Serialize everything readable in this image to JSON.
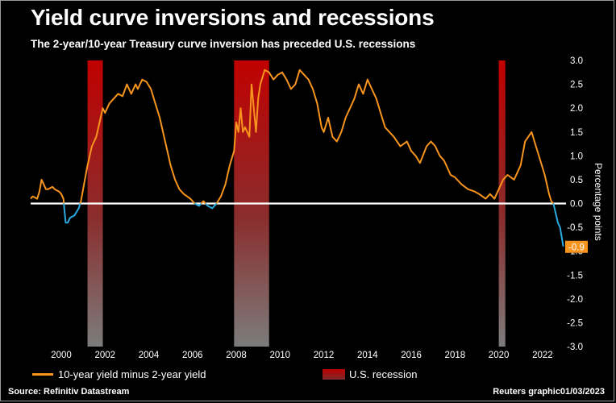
{
  "title": "Yield curve inversions and recessions",
  "subtitle": "The 2-year/10-year Treasury curve inversion has preceded U.S. recessions",
  "legend": {
    "series_label": "10-year yield minus 2-year yield",
    "recession_label": "U.S. recession"
  },
  "source": "Source: Refinitiv Datastream",
  "credit": "Reuters graphic01/03/2023",
  "chart_data": {
    "type": "line",
    "title": "Yield curve inversions and recessions",
    "ylabel": "Percentage points",
    "xlim": [
      1998.6,
      2023.0
    ],
    "ylim": [
      -3.0,
      3.0
    ],
    "x_ticks": [
      2000,
      2002,
      2004,
      2006,
      2008,
      2010,
      2012,
      2014,
      2016,
      2018,
      2020,
      2022
    ],
    "y_ticks": [
      3.0,
      2.5,
      2.0,
      1.5,
      1.0,
      0.5,
      0.0,
      -0.5,
      -1.0,
      -1.5,
      -2.0,
      -2.5,
      -3.0
    ],
    "recessions": [
      {
        "start": 2001.2,
        "end": 2001.9
      },
      {
        "start": 2007.9,
        "end": 2009.5
      },
      {
        "start": 2020.0,
        "end": 2020.3
      }
    ],
    "last_value_label": "-0.9",
    "colors": {
      "positive": "#f7941d",
      "negative": "#29abe2",
      "zero_line": "#ffffff",
      "recession_top": "#c00000",
      "recession_bottom": "#8c8c8c",
      "label_bg": "#f7941d"
    },
    "series": [
      {
        "name": "10-year yield minus 2-year yield",
        "x": [
          1998.6,
          1998.7,
          1998.9,
          1999.0,
          1999.1,
          1999.3,
          1999.4,
          1999.6,
          1999.7,
          1999.9,
          2000.0,
          2000.1,
          2000.2,
          2000.3,
          2000.4,
          2000.6,
          2000.8,
          2000.9,
          2001.0,
          2001.2,
          2001.4,
          2001.6,
          2001.8,
          2001.9,
          2002.0,
          2002.2,
          2002.4,
          2002.6,
          2002.8,
          2003.0,
          2003.2,
          2003.4,
          2003.5,
          2003.7,
          2003.9,
          2004.1,
          2004.3,
          2004.5,
          2004.8,
          2005.0,
          2005.2,
          2005.4,
          2005.6,
          2005.9,
          2006.1,
          2006.3,
          2006.5,
          2006.7,
          2006.9,
          2007.1,
          2007.3,
          2007.5,
          2007.7,
          2007.9,
          2008.0,
          2008.1,
          2008.2,
          2008.3,
          2008.4,
          2008.6,
          2008.7,
          2008.9,
          2009.0,
          2009.1,
          2009.3,
          2009.5,
          2009.7,
          2009.9,
          2010.1,
          2010.3,
          2010.5,
          2010.7,
          2010.9,
          2011.1,
          2011.3,
          2011.5,
          2011.7,
          2011.9,
          2012.0,
          2012.2,
          2012.4,
          2012.6,
          2012.8,
          2013.0,
          2013.2,
          2013.4,
          2013.6,
          2013.8,
          2014.0,
          2014.2,
          2014.4,
          2014.6,
          2014.8,
          2015.0,
          2015.2,
          2015.5,
          2015.8,
          2016.0,
          2016.2,
          2016.4,
          2016.7,
          2016.9,
          2017.1,
          2017.3,
          2017.5,
          2017.8,
          2018.0,
          2018.3,
          2018.6,
          2018.9,
          2019.1,
          2019.4,
          2019.6,
          2019.8,
          2020.0,
          2020.2,
          2020.4,
          2020.7,
          2021.0,
          2021.2,
          2021.5,
          2021.7,
          2021.9,
          2022.1,
          2022.3,
          2022.4,
          2022.5,
          2022.6,
          2022.7,
          2022.8,
          2022.95
        ],
        "y": [
          0.1,
          0.15,
          0.1,
          0.25,
          0.5,
          0.3,
          0.3,
          0.35,
          0.3,
          0.25,
          0.2,
          0.1,
          -0.4,
          -0.4,
          -0.3,
          -0.25,
          -0.1,
          0.05,
          0.3,
          0.8,
          1.2,
          1.4,
          1.8,
          2.0,
          1.9,
          2.1,
          2.2,
          2.3,
          2.25,
          2.5,
          2.3,
          2.5,
          2.4,
          2.6,
          2.55,
          2.4,
          2.1,
          1.8,
          1.2,
          0.8,
          0.5,
          0.3,
          0.2,
          0.1,
          0.0,
          -0.05,
          0.05,
          -0.05,
          -0.1,
          0.0,
          0.15,
          0.4,
          0.8,
          1.1,
          1.7,
          1.5,
          2.0,
          1.5,
          1.6,
          1.4,
          2.5,
          1.5,
          2.2,
          2.5,
          2.8,
          2.75,
          2.6,
          2.7,
          2.75,
          2.6,
          2.4,
          2.5,
          2.8,
          2.7,
          2.6,
          2.4,
          2.1,
          1.6,
          1.5,
          1.8,
          1.4,
          1.3,
          1.5,
          1.8,
          2.0,
          2.2,
          2.5,
          2.3,
          2.6,
          2.4,
          2.2,
          1.9,
          1.6,
          1.5,
          1.4,
          1.2,
          1.3,
          1.1,
          1.0,
          0.85,
          1.2,
          1.3,
          1.2,
          1.0,
          0.9,
          0.6,
          0.55,
          0.4,
          0.3,
          0.25,
          0.2,
          0.1,
          0.2,
          0.1,
          0.3,
          0.5,
          0.6,
          0.5,
          0.8,
          1.3,
          1.5,
          1.2,
          0.9,
          0.6,
          0.2,
          0.05,
          0.0,
          -0.2,
          -0.4,
          -0.5,
          -0.9
        ]
      }
    ]
  }
}
